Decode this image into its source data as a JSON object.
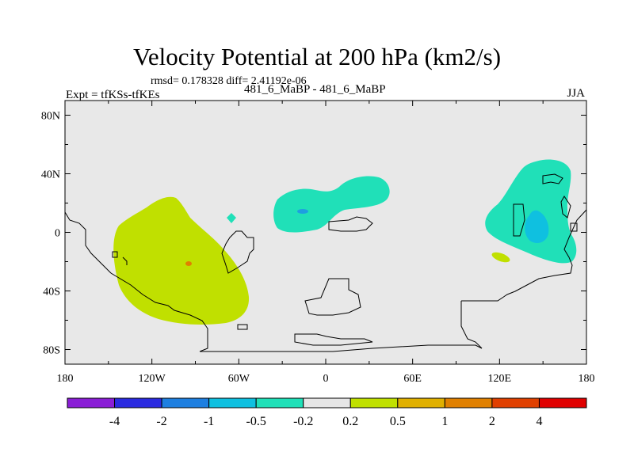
{
  "figure": {
    "title": "Velocity Potential at 200 hPa (km2/s)",
    "stats": "rmsd= 0.178328  diff= 2.41192e-06",
    "left_label": "Expt = tfKSs-tfKEs",
    "center_label": "481_6_MaBP - 481_6_MaBP",
    "right_label": "JJA"
  },
  "chart_data": {
    "type": "heatmap",
    "title": "Velocity Potential at 200 hPa (km2/s)",
    "projection": "cylindrical equidistant",
    "xlim": [
      -180,
      180
    ],
    "ylim": [
      -90,
      90
    ],
    "x_ticks": [
      {
        "value": -180,
        "label": "180"
      },
      {
        "value": -120,
        "label": "120W"
      },
      {
        "value": -60,
        "label": "60W"
      },
      {
        "value": 0,
        "label": "0"
      },
      {
        "value": 60,
        "label": "60E"
      },
      {
        "value": 120,
        "label": "120E"
      },
      {
        "value": 180,
        "label": "180"
      }
    ],
    "y_ticks": [
      {
        "value": 80,
        "label": "80N"
      },
      {
        "value": 40,
        "label": "40N"
      },
      {
        "value": 0,
        "label": "0"
      },
      {
        "value": -40,
        "label": "40S"
      },
      {
        "value": -80,
        "label": "80S"
      }
    ],
    "colorbar": {
      "colors": [
        "#8a1ed6",
        "#2a2ae0",
        "#1e7fe0",
        "#0fc0e0",
        "#20e0b8",
        "#e6e6e6",
        "#c0e000",
        "#e0b000",
        "#e08000",
        "#e04000",
        "#e00000"
      ],
      "labels": [
        "-4",
        "-2",
        "-1",
        "-0.5",
        "-0.2",
        "0.2",
        "0.5",
        "1",
        "2",
        "4"
      ]
    },
    "regions": [
      {
        "name": "positive anomaly over south-east Pacific",
        "level": "0.2 to 0.5",
        "color": "#c0e000",
        "lon_center": -100,
        "lat_center": -18
      },
      {
        "name": "weak local maximum",
        "level": "1 to 2",
        "color": "#e08000",
        "lon_center": -97,
        "lat_center": -20
      },
      {
        "name": "negative anomaly over tropical Atlantic / Africa",
        "level": "-0.5 to -0.2",
        "color": "#20e0b8",
        "lon_center": -5,
        "lat_center": 20
      },
      {
        "name": "negative core over Atlantic",
        "level": "-1 to -0.5",
        "color": "#0fc0e0",
        "lon_center": -15,
        "lat_center": 15
      },
      {
        "name": "negative anomaly over western Pacific",
        "level": "-0.5 to -0.2",
        "color": "#20e0b8",
        "lon_center": 145,
        "lat_center": 10
      },
      {
        "name": "negative core over western Pacific",
        "level": "-1 to -0.5",
        "color": "#0fc0e0",
        "lon_center": 145,
        "lat_center": 5
      },
      {
        "name": "small positive patch",
        "level": "0.2 to 0.5",
        "color": "#c0e000",
        "lon_center": 120,
        "lat_center": -15
      }
    ]
  }
}
